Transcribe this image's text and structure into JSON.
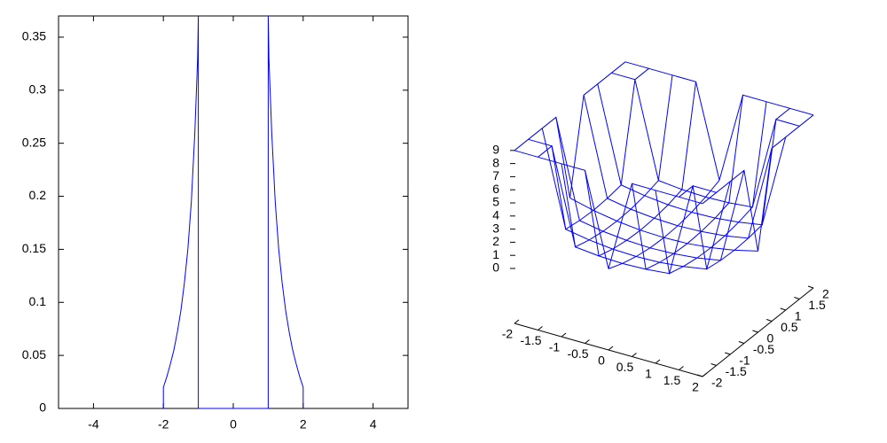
{
  "chart_data": [
    {
      "type": "line",
      "x": [
        -2,
        -2,
        -1.9,
        -1.8,
        -1.7,
        -1.6,
        -1.5,
        -1.4,
        -1.3,
        -1.2,
        -1.1,
        -1.02,
        -1,
        -1,
        1,
        1,
        1.02,
        1.1,
        1.2,
        1.3,
        1.4,
        1.5,
        1.6,
        1.7,
        1.8,
        1.9,
        2,
        2
      ],
      "values": [
        0,
        0.02,
        0.03,
        0.042,
        0.055,
        0.072,
        0.092,
        0.118,
        0.15,
        0.195,
        0.26,
        0.33,
        0.37,
        0,
        0,
        0.37,
        0.33,
        0.26,
        0.195,
        0.15,
        0.118,
        0.092,
        0.072,
        0.055,
        0.042,
        0.03,
        0.02,
        0
      ],
      "color": "#0000ff",
      "xlim": [
        -5,
        5
      ],
      "xticks": [
        -4,
        -2,
        0,
        2,
        4
      ],
      "ylim": [
        0,
        0.37
      ],
      "yticks": [
        0,
        0.05,
        0.1,
        0.15,
        0.2,
        0.25,
        0.3,
        0.35
      ],
      "grid": false
    },
    {
      "type": "surface",
      "color": "#0000ff",
      "x": [
        -2,
        -1.5,
        -1,
        -0.5,
        0,
        0.5,
        1,
        1.5,
        2
      ],
      "y": [
        -2,
        -1.5,
        -1,
        -0.5,
        0,
        0.5,
        1,
        1.5,
        2
      ],
      "z": [
        [
          9,
          9,
          9,
          9,
          2,
          9,
          9,
          9,
          9
        ],
        [
          9,
          9,
          1.81,
          1.63,
          1.56,
          1.63,
          1.81,
          9,
          9
        ],
        [
          9,
          1.81,
          1.5,
          1.31,
          1.25,
          1.31,
          1.5,
          1.81,
          9
        ],
        [
          9,
          1.63,
          1.31,
          1.13,
          1.06,
          1.13,
          1.31,
          1.63,
          9
        ],
        [
          2,
          1.56,
          1.25,
          1.06,
          1,
          1.06,
          1.25,
          1.56,
          2
        ],
        [
          9,
          1.63,
          1.31,
          1.13,
          1.06,
          1.13,
          1.31,
          1.63,
          9
        ],
        [
          9,
          1.81,
          1.5,
          1.31,
          1.25,
          1.31,
          1.5,
          1.81,
          9
        ],
        [
          9,
          9,
          1.81,
          1.63,
          1.56,
          1.63,
          1.81,
          9,
          9
        ],
        [
          9,
          9,
          9,
          9,
          2,
          9,
          9,
          9,
          9
        ]
      ],
      "xlim": [
        -2,
        2
      ],
      "xticks": [
        -2,
        -1.5,
        -1,
        -0.5,
        0,
        0.5,
        1,
        1.5,
        2
      ],
      "ylim": [
        -2,
        2
      ],
      "yticks": [
        -2,
        -1.5,
        -1,
        -0.5,
        0,
        0.5,
        1,
        1.5,
        2
      ],
      "zlim": [
        0,
        9
      ],
      "zticks": [
        0,
        1,
        2,
        3,
        4,
        5,
        6,
        7,
        8,
        9
      ]
    }
  ]
}
